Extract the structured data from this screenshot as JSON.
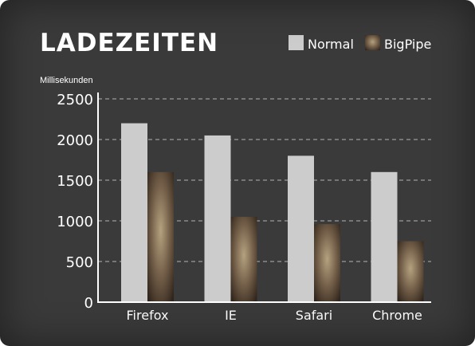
{
  "chart_data": {
    "type": "bar",
    "title": "LADEZEITEN",
    "ylabel": "Millisekunden",
    "xlabel": "",
    "categories": [
      "Firefox",
      "IE",
      "Safari",
      "Chrome"
    ],
    "series": [
      {
        "name": "Normal",
        "values": [
          2200,
          2050,
          1800,
          1600
        ],
        "color": "#cccccc"
      },
      {
        "name": "BigPipe",
        "values": [
          1600,
          1050,
          960,
          750
        ],
        "color": "#6e5a45"
      }
    ],
    "ylim": [
      0,
      2500
    ],
    "yticks": [
      0,
      500,
      1000,
      1500,
      2000,
      2500
    ],
    "grid": true,
    "legend": "top-right"
  }
}
